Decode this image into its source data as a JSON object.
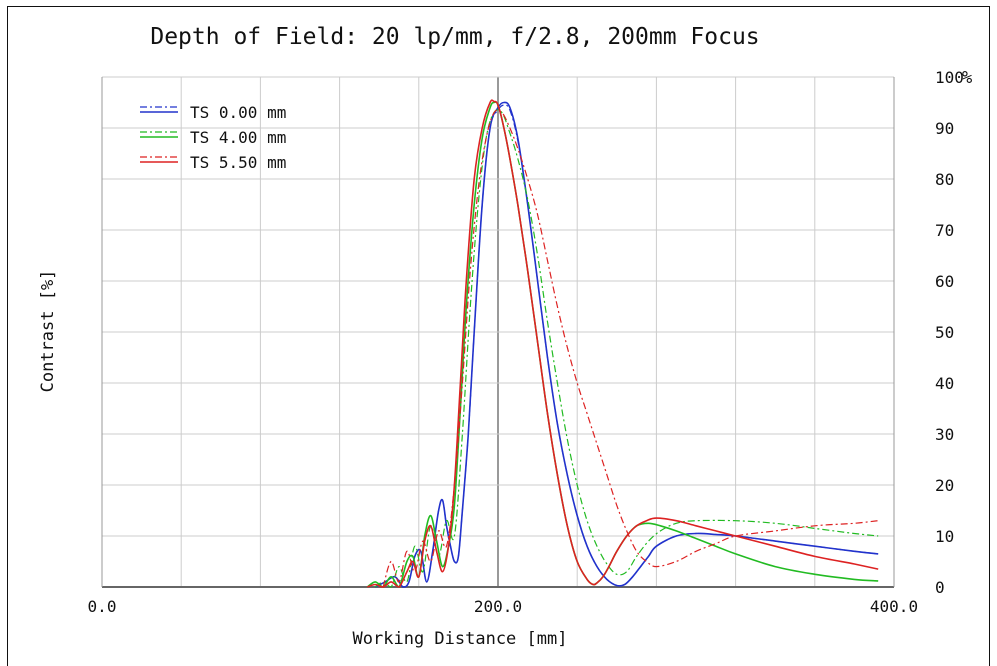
{
  "chart_data": {
    "type": "line",
    "title": "Depth of Field: 20 lp/mm, f/2.8, 200mm Focus",
    "xlabel": "Working Distance [mm]",
    "ylabel": "Contrast [%]",
    "y_unit_label": "%",
    "xlim": [
      0,
      400
    ],
    "ylim": [
      0,
      100
    ],
    "x_tick_labels": [
      {
        "value": 0,
        "label": "0.0"
      },
      {
        "value": 200,
        "label": "200.0"
      },
      {
        "value": 400,
        "label": "400.0"
      }
    ],
    "x_grid": [
      0,
      40,
      80,
      120,
      160,
      200,
      240,
      280,
      320,
      360,
      400
    ],
    "y_ticks": [
      0,
      10,
      20,
      30,
      40,
      50,
      60,
      70,
      80,
      90,
      100
    ],
    "y_axis_side": "right",
    "grid": true,
    "legend_position": "top-left",
    "colors": {
      "blue": "#2233cc",
      "green": "#22bb22",
      "red": "#dd2222",
      "grid": "#cccccc",
      "center": "#999999"
    },
    "series": [
      {
        "name": "TS 0.00 mm",
        "color": "#2233cc",
        "style": "solid",
        "x": [
          138,
          143,
          148,
          152,
          155,
          158,
          161,
          164,
          167,
          170,
          172,
          174,
          176,
          178,
          180,
          182,
          185,
          188,
          192,
          196,
          200,
          203,
          206,
          210,
          215,
          220,
          225,
          230,
          235,
          240,
          245,
          250,
          255,
          260,
          264,
          268,
          272,
          276,
          280,
          290,
          300,
          310,
          320,
          340,
          360,
          380,
          392
        ],
        "y": [
          0,
          1,
          2,
          0,
          1,
          6,
          7,
          1,
          7,
          15,
          17,
          12,
          8,
          5,
          6,
          15,
          30,
          50,
          75,
          90,
          94,
          95,
          94,
          88,
          75,
          60,
          45,
          32,
          22,
          14,
          8,
          4,
          1.5,
          0.3,
          0.5,
          2,
          4,
          6,
          8,
          10,
          10.5,
          10.3,
          10,
          9,
          8,
          7,
          6.5
        ]
      },
      {
        "name": "TS 0.00 mm (dashed)",
        "color": "#2233cc",
        "style": "dashdot",
        "x": [
          138,
          143,
          148,
          152,
          155,
          158,
          161,
          164,
          167,
          170,
          172,
          174,
          176,
          178,
          180,
          182,
          185,
          188,
          192,
          196,
          200,
          203,
          206,
          210,
          215,
          220,
          225,
          230,
          235,
          240,
          245,
          250,
          255,
          260,
          264,
          268,
          272,
          276,
          280,
          290,
          300,
          310,
          320,
          340,
          360,
          380,
          392
        ],
        "y": [
          0,
          1,
          2,
          0,
          1,
          6,
          7,
          1,
          7,
          15,
          17,
          12,
          8,
          5,
          6,
          15,
          30,
          50,
          75,
          90,
          93.5,
          94.5,
          93.5,
          87.5,
          75,
          60,
          45,
          32,
          22,
          14,
          8,
          4,
          1.5,
          0.3,
          0.5,
          2,
          4,
          6,
          8,
          10,
          10.5,
          10.3,
          10,
          9,
          8,
          7,
          6.5
        ]
      },
      {
        "name": "TS 4.00 mm",
        "color": "#22bb22",
        "style": "solid",
        "x": [
          134,
          138,
          142,
          146,
          150,
          154,
          157,
          160,
          163,
          166,
          169,
          172,
          175,
          178,
          181,
          184,
          188,
          192,
          196,
          198,
          200,
          203,
          206,
          210,
          215,
          220,
          225,
          230,
          235,
          240,
          245,
          248,
          250,
          253,
          256,
          260,
          265,
          270,
          276,
          282,
          290,
          300,
          310,
          320,
          340,
          360,
          380,
          392
        ],
        "y": [
          0,
          1,
          0,
          2,
          0,
          5,
          6,
          2,
          10,
          14,
          9,
          4,
          8,
          16,
          35,
          55,
          75,
          88,
          94,
          95,
          94.5,
          90,
          84,
          75,
          62,
          48,
          34,
          22,
          12,
          5,
          1.5,
          0.5,
          0.8,
          2,
          4,
          7,
          10,
          12,
          12.5,
          12,
          11,
          9.5,
          8,
          6.5,
          4,
          2.5,
          1.5,
          1.2
        ]
      },
      {
        "name": "TS 4.00 mm (dashed)",
        "color": "#22bb22",
        "style": "dashdot",
        "x": [
          138,
          142,
          146,
          150,
          154,
          158,
          162,
          166,
          170,
          174,
          178,
          182,
          186,
          190,
          194,
          198,
          202,
          206,
          210,
          215,
          220,
          225,
          230,
          235,
          240,
          245,
          250,
          255,
          260,
          265,
          270,
          276,
          282,
          290,
          300,
          320,
          340,
          360,
          380,
          392
        ],
        "y": [
          0,
          1,
          0,
          4,
          1,
          8,
          3,
          12,
          6,
          13,
          10,
          30,
          55,
          75,
          88,
          93,
          93,
          89,
          84,
          76,
          65,
          52,
          40,
          29,
          20,
          13,
          8,
          4.5,
          2.5,
          3,
          6,
          9,
          11,
          12.5,
          13,
          13,
          12.5,
          11.5,
          10.5,
          10
        ]
      },
      {
        "name": "TS 5.50 mm",
        "color": "#dd2222",
        "style": "solid",
        "x": [
          134,
          138,
          142,
          146,
          150,
          154,
          157,
          160,
          163,
          166,
          169,
          172,
          175,
          178,
          181,
          184,
          188,
          192,
          196,
          198,
          200,
          203,
          206,
          210,
          215,
          220,
          225,
          230,
          235,
          240,
          245,
          248,
          250,
          253,
          256,
          260,
          265,
          270,
          275,
          280,
          290,
          300,
          310,
          320,
          340,
          360,
          380,
          392
        ],
        "y": [
          0,
          0.5,
          0,
          1,
          0,
          3,
          5,
          2,
          9,
          12,
          7,
          3,
          8,
          20,
          40,
          60,
          80,
          90,
          95,
          95.2,
          94.5,
          90,
          84,
          75,
          62,
          48,
          34,
          22,
          12,
          5,
          1.5,
          0.5,
          0.8,
          2,
          4,
          7,
          10,
          12,
          13,
          13.5,
          13,
          12,
          11,
          10,
          8,
          6,
          4.5,
          3.5
        ]
      },
      {
        "name": "TS 5.50 mm (dashed)",
        "color": "#dd2222",
        "style": "dashdot",
        "x": [
          142,
          146,
          150,
          154,
          158,
          162,
          166,
          170,
          174,
          178,
          182,
          186,
          190,
          194,
          198,
          202,
          206,
          210,
          215,
          220,
          225,
          230,
          235,
          240,
          245,
          250,
          255,
          260,
          265,
          270,
          275,
          280,
          290,
          300,
          310,
          320,
          340,
          360,
          380,
          392
        ],
        "y": [
          0,
          5,
          1,
          7,
          3,
          9,
          5,
          11,
          8,
          20,
          40,
          62,
          78,
          88,
          93,
          93,
          90,
          86,
          80,
          73,
          64,
          55,
          47,
          40,
          34,
          28,
          22,
          16,
          11,
          7,
          5,
          4,
          5,
          7,
          8.5,
          10,
          11,
          12,
          12.5,
          13
        ]
      }
    ]
  },
  "legend": [
    {
      "label": "TS 0.00 mm",
      "color": "#2233cc"
    },
    {
      "label": "TS 4.00 mm",
      "color": "#22bb22"
    },
    {
      "label": "TS 5.50 mm",
      "color": "#dd2222"
    }
  ]
}
